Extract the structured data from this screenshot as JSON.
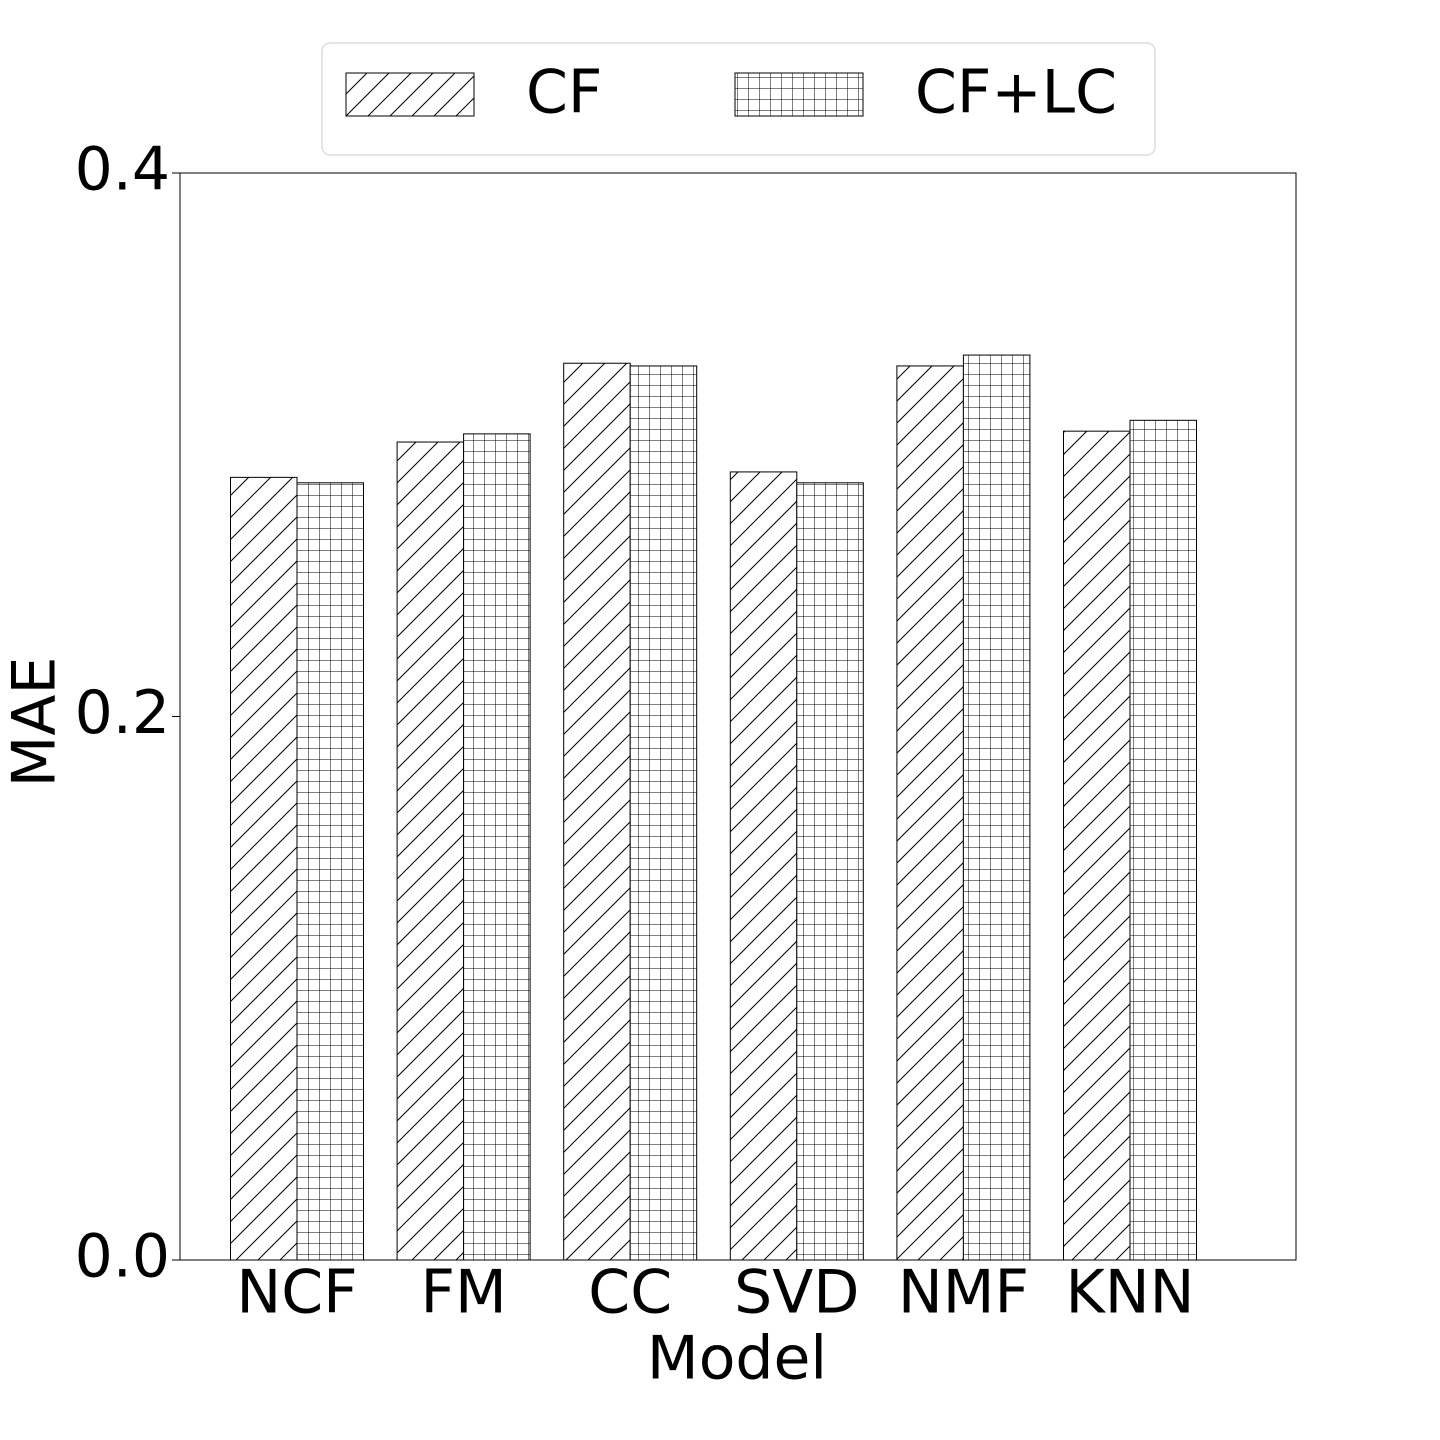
{
  "chart_data": {
    "type": "bar",
    "x_label": "Model",
    "y_label": "MAE",
    "categories": [
      "NCF",
      "FM",
      "CC",
      "SVD",
      "NMF",
      "KNN"
    ],
    "series": [
      {
        "name": "CF",
        "color": "#ffffff",
        "hatch": "/",
        "values": [
          0.288,
          0.301,
          0.33,
          0.29,
          0.329,
          0.305
        ]
      },
      {
        "name": "CF+LC",
        "color": "#ffffff",
        "hatch": "+",
        "values": [
          0.286,
          0.304,
          0.329,
          0.286,
          0.333,
          0.309
        ]
      }
    ],
    "ylim": [
      0,
      0.4
    ],
    "yticks": [
      {
        "value": 0,
        "label": "0.0"
      },
      0.2,
      0.4
    ],
    "grid": false,
    "legend": "top"
  }
}
